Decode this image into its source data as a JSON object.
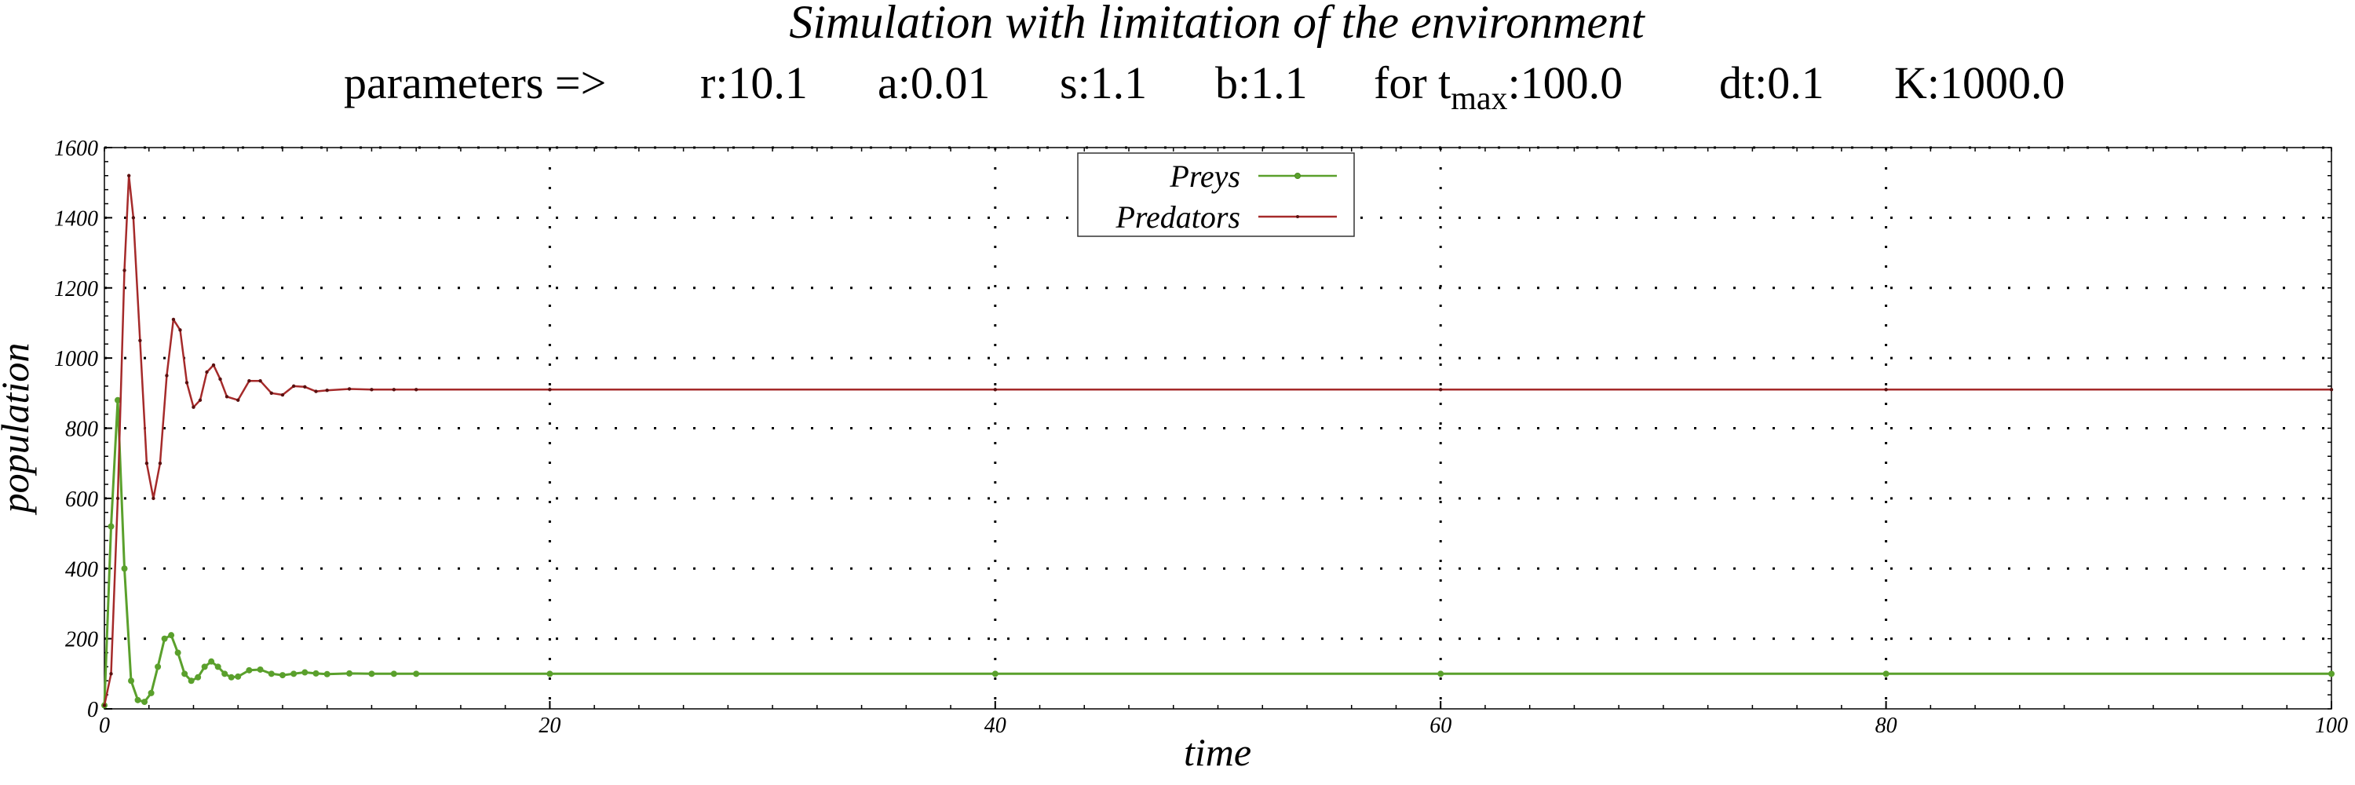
{
  "chart_data": {
    "type": "line",
    "title": "Simulation with limitation of the environment",
    "parameters": {
      "prefix": "parameters =>",
      "r": "r:10.1",
      "a": "a:0.01",
      "s": "s:1.1",
      "b": "b:1.1",
      "tmax_prefix": "for t",
      "tmax_sub": "max",
      "tmax_value": ":100.0",
      "dt": "dt:0.1",
      "K": "K:1000.0"
    },
    "xlabel": "time",
    "ylabel": "population",
    "xlim": [
      0,
      100
    ],
    "ylim": [
      0,
      1600
    ],
    "xticks": [
      0,
      20,
      40,
      60,
      80,
      100
    ],
    "yticks": [
      0,
      200,
      400,
      600,
      800,
      1000,
      1200,
      1400,
      1600
    ],
    "xtick_labels": [
      "0",
      "20",
      "40",
      "60",
      "80",
      "100"
    ],
    "ytick_labels": [
      "0",
      "200",
      "400",
      "600",
      "800",
      "1000",
      "1200",
      "1400",
      "1600"
    ],
    "grid": true,
    "legend_position": "top-center",
    "series": [
      {
        "name": "Preys",
        "color": "#5aa02c",
        "marker": "circle",
        "x": [
          0,
          0.3,
          0.6,
          0.9,
          1.2,
          1.5,
          1.8,
          2.1,
          2.4,
          2.7,
          3.0,
          3.3,
          3.6,
          3.9,
          4.2,
          4.5,
          4.8,
          5.1,
          5.4,
          5.7,
          6.0,
          6.5,
          7.0,
          7.5,
          8.0,
          8.5,
          9.0,
          9.5,
          10,
          11,
          12,
          13,
          14,
          20,
          40,
          60,
          80,
          100
        ],
        "y": [
          10,
          520,
          880,
          400,
          80,
          25,
          20,
          45,
          120,
          200,
          210,
          160,
          100,
          80,
          90,
          120,
          135,
          120,
          100,
          90,
          92,
          110,
          112,
          100,
          96,
          100,
          104,
          101,
          99,
          101,
          100,
          100,
          100,
          100,
          100,
          100,
          100,
          100
        ]
      },
      {
        "name": "Predators",
        "color": "#a52a2a",
        "marker": "dot",
        "x": [
          0,
          0.3,
          0.6,
          0.9,
          1.1,
          1.3,
          1.6,
          1.9,
          2.2,
          2.5,
          2.8,
          3.1,
          3.4,
          3.7,
          4.0,
          4.3,
          4.6,
          4.9,
          5.2,
          5.5,
          6.0,
          6.5,
          7.0,
          7.5,
          8.0,
          8.5,
          9.0,
          9.5,
          10,
          11,
          12,
          13,
          14,
          20,
          40,
          60,
          80,
          100
        ],
        "y": [
          10,
          100,
          600,
          1250,
          1520,
          1400,
          1050,
          700,
          600,
          700,
          950,
          1110,
          1080,
          930,
          860,
          880,
          960,
          980,
          940,
          890,
          880,
          935,
          935,
          900,
          895,
          920,
          918,
          905,
          908,
          912,
          910,
          910,
          910,
          910,
          910,
          910,
          910,
          910
        ]
      }
    ]
  }
}
